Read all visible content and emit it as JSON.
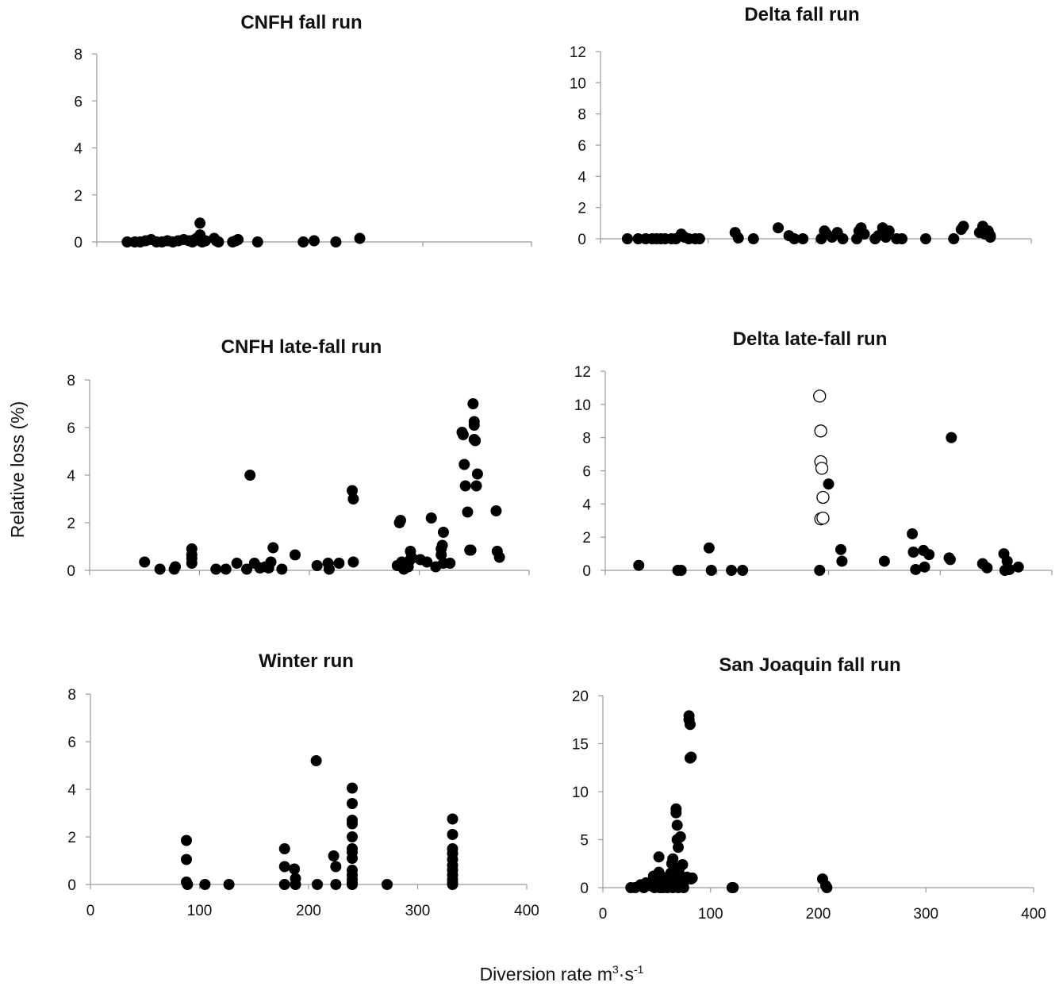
{
  "figure": {
    "ylabel": "Relative loss (%)",
    "xlabel_main": "Diversion rate m",
    "xlabel_sup1": "3",
    "xlabel_mid": "·s",
    "xlabel_sup2": "-1"
  },
  "chart_data": [
    {
      "type": "scatter",
      "title": "CNFH fall run",
      "xlim": [
        0,
        400
      ],
      "ylim": [
        0,
        8
      ],
      "yticks": [
        "0",
        "2",
        "4",
        "6",
        "8"
      ],
      "xticks": [],
      "x": [
        28,
        35,
        40,
        45,
        50,
        55,
        60,
        65,
        70,
        75,
        80,
        85,
        88,
        90,
        92,
        95,
        95,
        95,
        97,
        100,
        108,
        110,
        112,
        125,
        128,
        130,
        148,
        190,
        200,
        220,
        242
      ],
      "y": [
        0,
        0,
        0,
        0.05,
        0.1,
        0,
        0,
        0.05,
        0,
        0.05,
        0.1,
        0.05,
        0,
        0.1,
        0.15,
        0.8,
        0.3,
        0.05,
        0,
        0.05,
        0.15,
        0.05,
        0,
        0,
        0.05,
        0.1,
        0,
        0,
        0.05,
        0,
        0.15
      ],
      "hollow_x": [],
      "hollow_y": []
    },
    {
      "type": "scatter",
      "title": "Delta fall run",
      "xlim": [
        0,
        400
      ],
      "ylim": [
        0,
        12
      ],
      "yticks": [
        "0",
        "2",
        "4",
        "6",
        "8",
        "10",
        "12"
      ],
      "xticks": [],
      "x": [
        25,
        35,
        42,
        48,
        52,
        56,
        60,
        66,
        70,
        75,
        78,
        82,
        88,
        92,
        125,
        128,
        142,
        165,
        175,
        180,
        188,
        205,
        208,
        210,
        215,
        220,
        225,
        238,
        240,
        242,
        245,
        255,
        258,
        262,
        265,
        268,
        275,
        280,
        302,
        328,
        335,
        337,
        352,
        355,
        357,
        360,
        362,
        362
      ],
      "y": [
        0,
        0,
        0,
        0,
        0,
        0,
        0,
        0,
        0,
        0.3,
        0.1,
        0,
        0,
        0,
        0.4,
        0.05,
        0,
        0.7,
        0.2,
        0,
        0,
        0,
        0.5,
        0.3,
        0.1,
        0.4,
        0,
        0,
        0.5,
        0.7,
        0.3,
        0,
        0.2,
        0.7,
        0.1,
        0.5,
        0,
        0,
        0,
        0,
        0.6,
        0.8,
        0.4,
        0.8,
        0.3,
        0.5,
        0.1,
        0.2
      ],
      "hollow_x": [],
      "hollow_y": []
    },
    {
      "type": "scatter",
      "title": "CNFH late-fall run",
      "xlim": [
        0,
        400
      ],
      "ylim": [
        0,
        8
      ],
      "yticks": [
        "0",
        "2",
        "4",
        "6",
        "8"
      ],
      "xticks": [],
      "x": [
        50,
        64,
        77,
        78,
        93,
        93,
        93,
        93,
        115,
        124,
        134,
        143,
        146,
        150,
        155,
        160,
        163,
        165,
        167,
        175,
        187,
        207,
        217,
        218,
        227,
        239,
        240,
        240,
        280,
        282,
        283,
        284,
        286,
        289,
        290,
        291,
        292,
        293,
        293,
        301,
        307,
        311,
        315,
        320,
        320,
        321,
        322,
        322,
        328,
        339,
        340,
        341,
        342,
        344,
        346,
        347,
        349,
        350,
        350,
        350,
        351,
        352,
        353,
        370,
        371,
        373
      ],
      "y": [
        0.35,
        0.05,
        0.05,
        0.15,
        0.3,
        0.5,
        0.65,
        0.9,
        0.05,
        0.05,
        0.3,
        0.05,
        4.0,
        0.3,
        0.1,
        0.15,
        0.1,
        0.35,
        0.95,
        0.05,
        0.65,
        0.2,
        0.3,
        0.05,
        0.3,
        3.35,
        3.0,
        0.35,
        0.2,
        2.0,
        2.1,
        0.35,
        0.05,
        0.3,
        0.15,
        0.4,
        0.8,
        0.5,
        0.55,
        0.45,
        0.35,
        2.2,
        0.15,
        0.65,
        0.9,
        1.05,
        1.6,
        0.3,
        0.3,
        5.8,
        5.7,
        4.45,
        3.55,
        2.45,
        0.85,
        0.85,
        7.0,
        6.25,
        6.1,
        5.5,
        5.45,
        3.55,
        4.05,
        2.5,
        0.8,
        0.55
      ],
      "hollow_x": [],
      "hollow_y": []
    },
    {
      "type": "scatter",
      "title": "Delta late-fall run",
      "xlim": [
        0,
        400
      ],
      "ylim": [
        0,
        12
      ],
      "yticks": [
        "0",
        "2",
        "4",
        "6",
        "8",
        "10",
        "12"
      ],
      "xticks": [],
      "x": [
        30,
        65,
        68,
        93,
        95,
        113,
        123,
        192,
        200,
        211,
        212,
        250,
        275,
        276,
        278,
        285,
        286,
        290,
        308,
        309,
        310,
        338,
        342,
        357,
        358,
        360,
        362,
        370
      ],
      "y": [
        0.3,
        0,
        0,
        1.35,
        0,
        0,
        0,
        0,
        5.2,
        1.25,
        0.55,
        0.55,
        2.2,
        1.1,
        0.05,
        1.2,
        0.2,
        0.95,
        0.75,
        0.65,
        8.0,
        0.4,
        0.15,
        1.0,
        0,
        0.55,
        0.05,
        0.2
      ],
      "hollow_x": [
        192,
        193,
        193,
        194,
        195,
        193,
        195
      ],
      "hollow_y": [
        10.5,
        8.4,
        6.55,
        6.15,
        4.4,
        3.1,
        3.15
      ]
    },
    {
      "type": "scatter",
      "title": "Winter run",
      "xlim": [
        0,
        400
      ],
      "ylim": [
        0,
        8
      ],
      "yticks": [
        "0",
        "2",
        "4",
        "6",
        "8"
      ],
      "xticks": [
        "0",
        "100",
        "200",
        "300",
        "400"
      ],
      "x": [
        88,
        88,
        88,
        89,
        105,
        127,
        178,
        178,
        178,
        187,
        188,
        188,
        207,
        208,
        223,
        225,
        225,
        240,
        240,
        240,
        240,
        240,
        240,
        240,
        240,
        240,
        240,
        240,
        240,
        240,
        272,
        332,
        332,
        332,
        332,
        332,
        332,
        332,
        332,
        332,
        332,
        332
      ],
      "y": [
        1.85,
        1.05,
        0.1,
        0,
        0,
        0,
        1.5,
        0.75,
        0,
        0.65,
        0.25,
        0,
        5.2,
        0,
        1.2,
        0.75,
        0,
        4.05,
        3.4,
        2.7,
        2.55,
        2.0,
        1.5,
        1.35,
        1.1,
        0.6,
        0.4,
        0.2,
        0.05,
        0,
        0,
        2.75,
        2.1,
        1.5,
        1.3,
        1.05,
        0.8,
        0.6,
        0.4,
        0.2,
        0.05,
        0
      ],
      "hollow_x": [],
      "hollow_y": []
    },
    {
      "type": "scatter",
      "title": "San Joaquin fall run",
      "xlim": [
        0,
        400
      ],
      "ylim": [
        0,
        20
      ],
      "yticks": [
        "0",
        "5",
        "10",
        "15",
        "20"
      ],
      "xticks": [
        "0",
        "100",
        "200",
        "300",
        "400"
      ],
      "x": [
        26,
        30,
        35,
        38,
        40,
        44,
        47,
        48,
        50,
        52,
        52,
        53,
        54,
        55,
        56,
        57,
        58,
        60,
        62,
        63,
        64,
        65,
        65,
        66,
        67,
        68,
        68,
        69,
        69,
        70,
        70,
        71,
        71,
        72,
        73,
        74,
        75,
        76,
        78,
        80,
        80,
        81,
        81,
        82,
        82,
        83,
        120,
        121,
        204,
        207,
        208
      ],
      "y": [
        0,
        0,
        0.3,
        0,
        0.5,
        0.2,
        1.2,
        0,
        0.8,
        1.6,
        3.2,
        0,
        0.5,
        1.1,
        0,
        0.3,
        0.8,
        0,
        0.4,
        1.5,
        2.5,
        0,
        3.0,
        0.6,
        1.0,
        8.2,
        7.8,
        6.5,
        5.0,
        4.2,
        0,
        2.0,
        1.4,
        5.3,
        0.3,
        2.4,
        0,
        0.7,
        1.1,
        17.9,
        17.5,
        17.0,
        13.5,
        13.6,
        0.9,
        1.0,
        0,
        0,
        0.9,
        0.2,
        0
      ],
      "hollow_x": [],
      "hollow_y": []
    }
  ]
}
